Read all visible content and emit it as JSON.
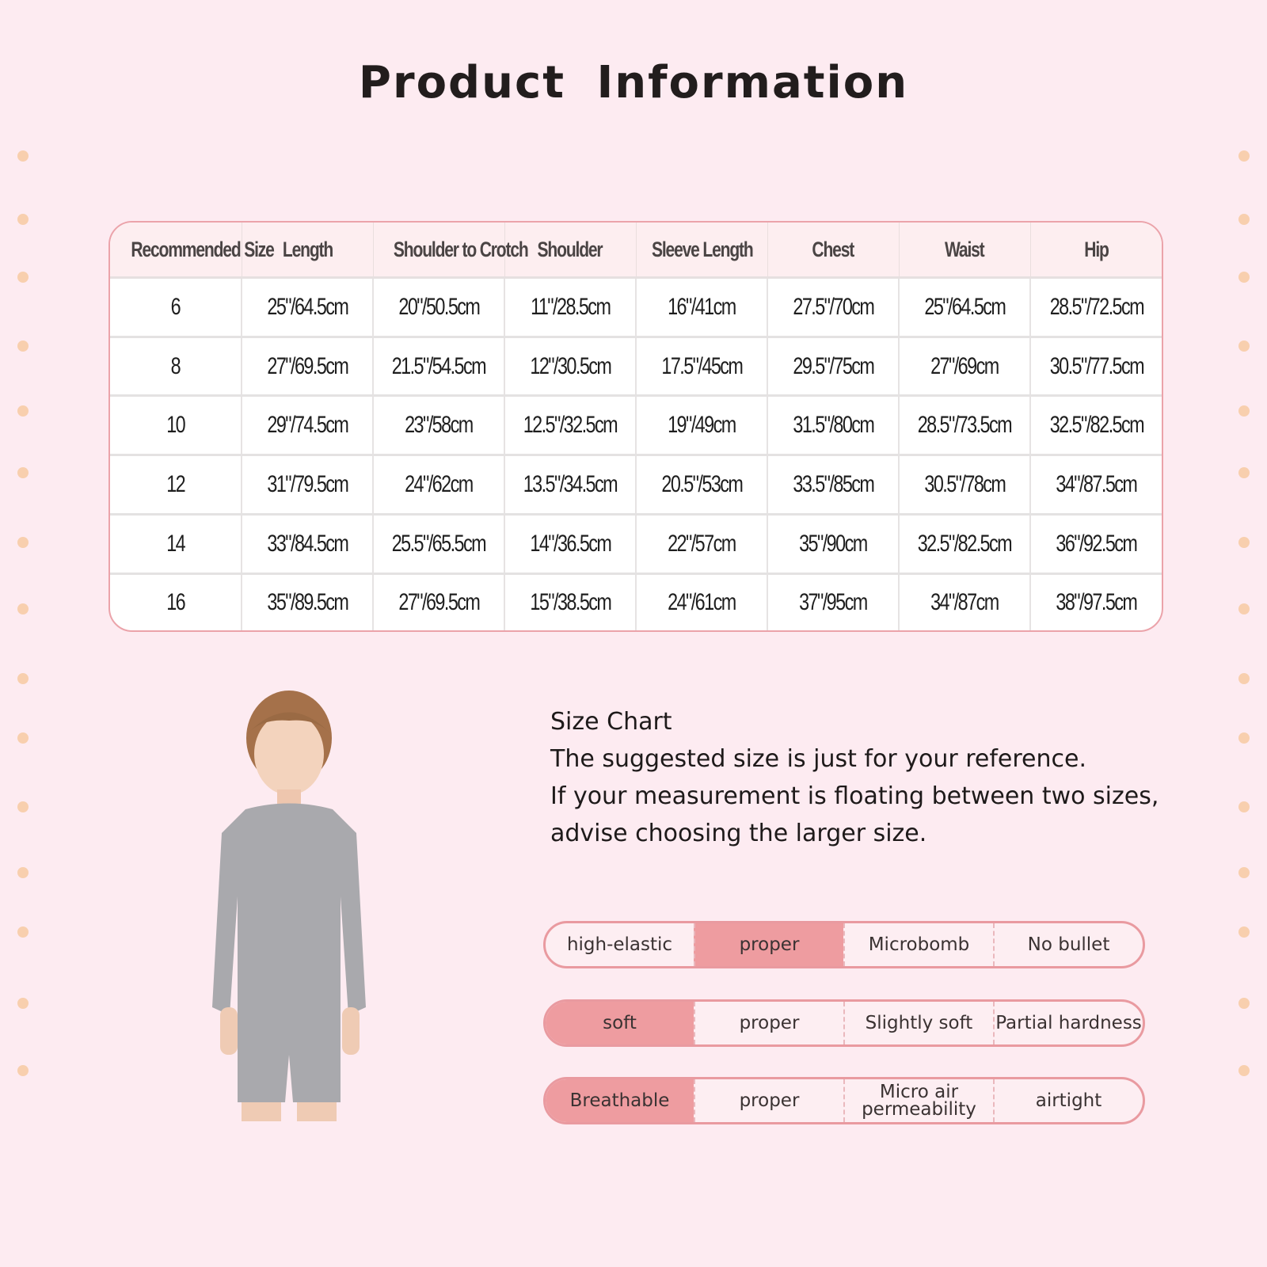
{
  "title": "Product  Information",
  "colors": {
    "background": "#fdebf1",
    "accent": "#ee9ca0",
    "border": "#e99aa0",
    "dots": "#f8cfae"
  },
  "size_table": {
    "headers": [
      "Recommended Size",
      "Length",
      "Shoulder to Crotch",
      "Shoulder",
      "Sleeve Length",
      "Chest",
      "Waist",
      "Hip"
    ],
    "rows": [
      [
        "6",
        "25\"/64.5cm",
        "20\"/50.5cm",
        "11\"/28.5cm",
        "16\"/41cm",
        "27.5\"/70cm",
        "25\"/64.5cm",
        "28.5\"/72.5cm"
      ],
      [
        "8",
        "27\"/69.5cm",
        "21.5\"/54.5cm",
        "12\"/30.5cm",
        "17.5\"/45cm",
        "29.5\"/75cm",
        "27\"/69cm",
        "30.5\"/77.5cm"
      ],
      [
        "10",
        "29\"/74.5cm",
        "23\"/58cm",
        "12.5\"/32.5cm",
        "19\"/49cm",
        "31.5\"/80cm",
        "28.5\"/73.5cm",
        "32.5\"/82.5cm"
      ],
      [
        "12",
        "31\"/79.5cm",
        "24\"/62cm",
        "13.5\"/34.5cm",
        "20.5\"/53cm",
        "33.5\"/85cm",
        "30.5\"/78cm",
        "34\"/87.5cm"
      ],
      [
        "14",
        "33\"/84.5cm",
        "25.5\"/65.5cm",
        "14\"/36.5cm",
        "22\"/57cm",
        "35\"/90cm",
        "32.5\"/82.5cm",
        "36\"/92.5cm"
      ],
      [
        "16",
        "35\"/89.5cm",
        "27\"/69.5cm",
        "15\"/38.5cm",
        "24\"/61cm",
        "37\"/95cm",
        "34\"/87cm",
        "38\"/97.5cm"
      ]
    ]
  },
  "size_note": {
    "heading": "Size Chart",
    "lines": [
      "The suggested size is just for your reference.",
      "If your measurement is floating between two sizes,",
      "advise choosing the larger size."
    ]
  },
  "attributes": [
    {
      "options": [
        "high-elastic",
        "proper",
        "Microbomb",
        "No bullet"
      ],
      "selected": 1
    },
    {
      "options": [
        "soft",
        "proper",
        "Slightly soft",
        "Partial hardness"
      ],
      "selected": 0
    },
    {
      "options": [
        "Breathable",
        "proper",
        "Micro air permeability",
        "airtight"
      ],
      "selected": 0
    }
  ]
}
